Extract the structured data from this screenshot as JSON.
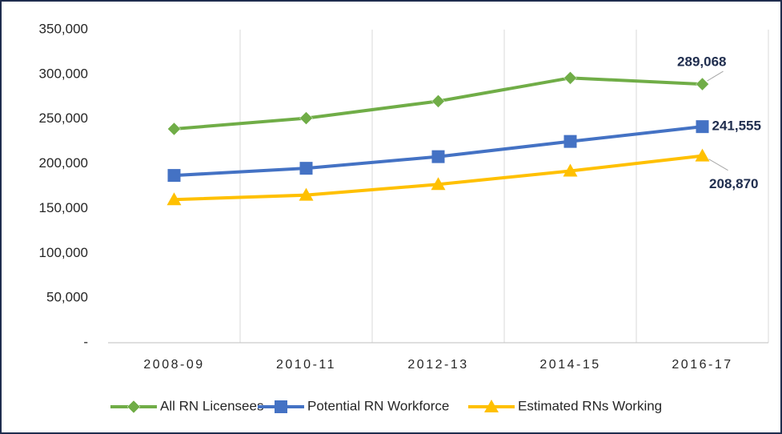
{
  "chart_data": {
    "type": "line",
    "categories": [
      "2008-09",
      "2010-11",
      "2012-13",
      "2014-15",
      "2016-17"
    ],
    "series": [
      {
        "name": "All RN Licensees",
        "color": "#70ad47",
        "marker": "diamond",
        "values": [
          239000,
          251000,
          270000,
          296000,
          289068
        ],
        "value_labels": [
          null,
          null,
          null,
          null,
          "289,068"
        ]
      },
      {
        "name": "Potential RN Workforce",
        "color": "#4472c4",
        "marker": "square",
        "values": [
          187000,
          195000,
          208000,
          225000,
          241555
        ],
        "value_labels": [
          null,
          null,
          null,
          null,
          "241,555"
        ]
      },
      {
        "name": "Estimated RNs Working",
        "color": "#ffc000",
        "marker": "triangle",
        "values": [
          160000,
          165000,
          177000,
          192000,
          208870
        ],
        "value_labels": [
          null,
          null,
          null,
          null,
          "208,870"
        ]
      }
    ],
    "ylim": [
      0,
      350000
    ],
    "yticks": [
      {
        "value": 0,
        "label": "-"
      },
      {
        "value": 50000,
        "label": "50,000"
      },
      {
        "value": 100000,
        "label": "100,000"
      },
      {
        "value": 150000,
        "label": "150,000"
      },
      {
        "value": 200000,
        "label": "200,000"
      },
      {
        "value": 250000,
        "label": "250,000"
      },
      {
        "value": 300000,
        "label": "300,000"
      },
      {
        "value": 350000,
        "label": "350,000"
      }
    ],
    "legend": "bottom"
  }
}
